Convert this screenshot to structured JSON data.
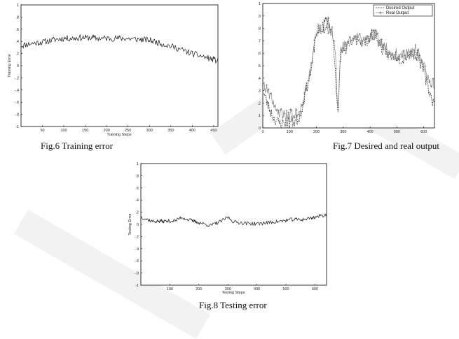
{
  "figures": {
    "fig6_caption": "Fig.6 Training error",
    "fig7_caption": "Fig.7 Desired and real output",
    "fig8_caption": "Fig.8 Testing error"
  },
  "chart_data": [
    {
      "type": "line",
      "id": "fig6",
      "title": "",
      "xlabel": "Training Steps",
      "ylabel": "Training Error",
      "xlim": [
        0,
        460
      ],
      "ylim": [
        -1,
        1
      ],
      "xticks": [
        50,
        100,
        150,
        200,
        250,
        300,
        350,
        400,
        450
      ],
      "yticks": [
        -1,
        -0.8,
        -0.6,
        -0.4,
        -0.2,
        0,
        0.2,
        0.4,
        0.6,
        0.8,
        1
      ],
      "series": [
        {
          "x": [
            0,
            20,
            40,
            60,
            80,
            100,
            120,
            140,
            160,
            180,
            200,
            220,
            240,
            260,
            280,
            300,
            320,
            340,
            360,
            380,
            400,
            420,
            440,
            460
          ],
          "values": [
            0.33,
            0.36,
            0.38,
            0.4,
            0.43,
            0.45,
            0.45,
            0.46,
            0.46,
            0.45,
            0.45,
            0.45,
            0.45,
            0.44,
            0.43,
            0.42,
            0.38,
            0.34,
            0.3,
            0.25,
            0.2,
            0.16,
            0.12,
            0.08
          ],
          "color": "#111111"
        }
      ],
      "grid": false
    },
    {
      "type": "line",
      "id": "fig7",
      "title": "",
      "xlabel": "",
      "ylabel": "",
      "xlim": [
        0,
        640
      ],
      "ylim": [
        0,
        1
      ],
      "xticks": [
        0,
        100,
        200,
        300,
        400,
        500,
        600
      ],
      "yticks": [
        0,
        0.1,
        0.2,
        0.3,
        0.4,
        0.5,
        0.6,
        0.7,
        0.8,
        0.9,
        1
      ],
      "legend_position": "top-right",
      "series": [
        {
          "name": "Desired Output",
          "x": [
            0,
            20,
            40,
            60,
            80,
            100,
            120,
            140,
            160,
            180,
            200,
            220,
            240,
            260,
            270,
            280,
            290,
            300,
            320,
            340,
            360,
            380,
            400,
            420,
            440,
            460,
            480,
            500,
            520,
            540,
            560,
            580,
            600,
            620,
            640
          ],
          "values": [
            0.3,
            0.18,
            0.08,
            0.04,
            0.04,
            0.05,
            0.05,
            0.1,
            0.3,
            0.45,
            0.78,
            0.8,
            0.88,
            0.75,
            0.5,
            0.05,
            0.6,
            0.62,
            0.65,
            0.7,
            0.72,
            0.68,
            0.74,
            0.76,
            0.65,
            0.6,
            0.58,
            0.58,
            0.55,
            0.6,
            0.6,
            0.58,
            0.45,
            0.3,
            0.18
          ],
          "color": "#222222",
          "dash": true
        },
        {
          "name": "Real Output",
          "x": [
            0,
            20,
            40,
            60,
            80,
            100,
            120,
            140,
            160,
            180,
            200,
            220,
            240,
            260,
            270,
            280,
            290,
            300,
            320,
            340,
            360,
            380,
            400,
            420,
            440,
            460,
            480,
            500,
            520,
            540,
            560,
            580,
            600,
            620,
            640
          ],
          "values": [
            0.36,
            0.3,
            0.2,
            0.13,
            0.11,
            0.1,
            0.11,
            0.13,
            0.3,
            0.5,
            0.78,
            0.78,
            0.8,
            0.78,
            0.6,
            0.1,
            0.66,
            0.66,
            0.68,
            0.72,
            0.72,
            0.68,
            0.74,
            0.76,
            0.68,
            0.64,
            0.6,
            0.6,
            0.58,
            0.6,
            0.62,
            0.62,
            0.5,
            0.38,
            0.34
          ],
          "color": "#888888",
          "marker": "+"
        }
      ],
      "grid": false
    },
    {
      "type": "line",
      "id": "fig8",
      "title": "",
      "xlabel": "Testing Steps",
      "ylabel": "Testing Error",
      "xlim": [
        0,
        640
      ],
      "ylim": [
        -1,
        1
      ],
      "xticks": [
        100,
        200,
        300,
        400,
        500,
        600
      ],
      "yticks": [
        -1,
        -0.8,
        -0.6,
        -0.4,
        -0.2,
        0,
        0.2,
        0.4,
        0.6,
        0.8,
        1
      ],
      "series": [
        {
          "x": [
            0,
            40,
            80,
            120,
            140,
            160,
            200,
            240,
            260,
            280,
            300,
            320,
            360,
            400,
            440,
            480,
            520,
            560,
            600,
            640
          ],
          "values": [
            0.12,
            0.05,
            0.05,
            0.06,
            0.12,
            0.08,
            0.03,
            -0.02,
            0.02,
            0.06,
            0.12,
            0.04,
            0.02,
            0.01,
            0.03,
            0.05,
            0.08,
            0.08,
            0.12,
            0.16
          ],
          "color": "#111111"
        }
      ],
      "grid": false
    }
  ]
}
